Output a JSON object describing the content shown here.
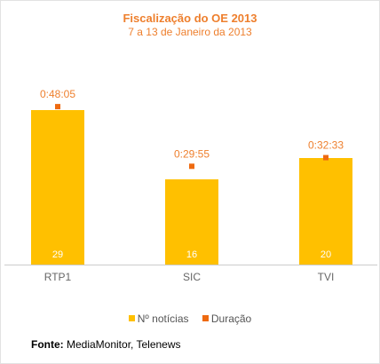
{
  "chart_data": {
    "type": "bar",
    "title": "Fiscalização do OE 2013",
    "subtitle": "7 a 13 de Janeiro da 2013",
    "categories": [
      "RTP1",
      "SIC",
      "TVI"
    ],
    "series": [
      {
        "name": "Nº notícias",
        "values": [
          29,
          16,
          20
        ],
        "color": "#ffc000"
      },
      {
        "name": "Duração",
        "values": [
          "0:48:05",
          "0:29:55",
          "0:32:33"
        ],
        "minutes": [
          48.08,
          29.92,
          32.55
        ],
        "color": "#ee6a10"
      }
    ],
    "ylim_bars": [
      0,
      37
    ],
    "legend_position": "bottom",
    "grid": false
  },
  "source": {
    "label": "Fonte:",
    "text": " MediaMonitor, Telenews"
  },
  "colors": {
    "title": "#ee7f2d",
    "axis": "#cccccc",
    "tick_label": "#666666"
  }
}
